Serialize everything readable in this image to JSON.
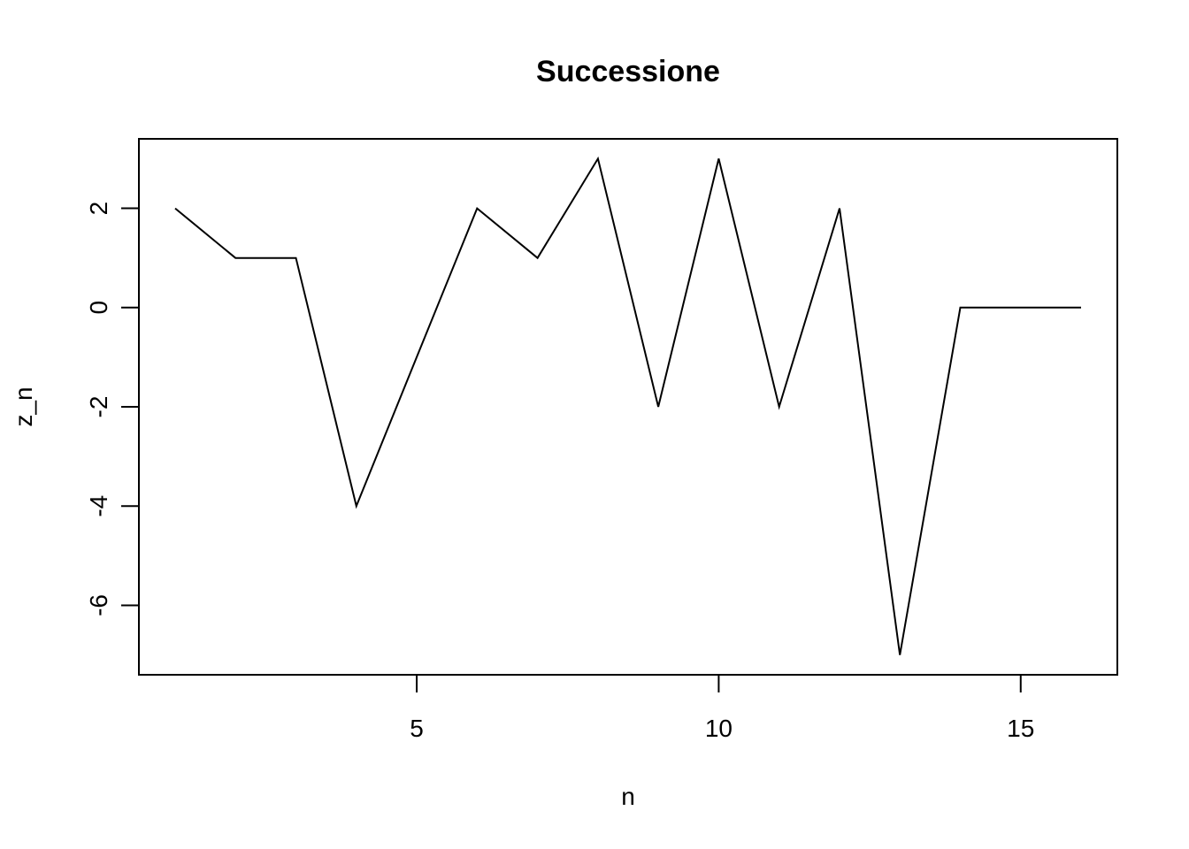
{
  "chart_data": {
    "type": "line",
    "title": "Successione",
    "xlabel": "n",
    "ylabel": "z_n",
    "x": [
      1,
      2,
      3,
      4,
      5,
      6,
      7,
      8,
      9,
      10,
      11,
      12,
      13,
      14,
      15,
      16
    ],
    "series": [
      {
        "values": [
          2,
          1,
          1,
          -4,
          -1,
          2,
          1,
          3,
          -2,
          3,
          -2,
          2,
          -7,
          0,
          0,
          0
        ]
      }
    ],
    "xlim": [
      0.4,
      16.6
    ],
    "ylim": [
      -7.4,
      3.4
    ],
    "xticks": [
      5,
      10,
      15
    ],
    "yticks": [
      -6,
      -4,
      -2,
      0,
      2
    ],
    "xtick_labels": [
      "5",
      "10",
      "15"
    ],
    "ytick_labels": [
      "-6",
      "-4",
      "-2",
      "0",
      "2"
    ],
    "grid": false,
    "legend": "none",
    "line_color": "#000000"
  }
}
